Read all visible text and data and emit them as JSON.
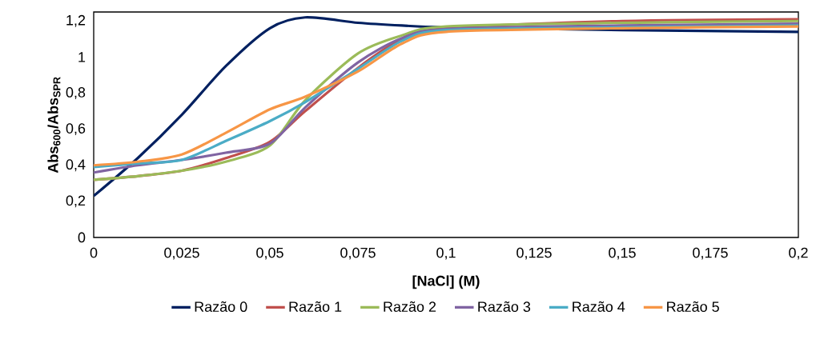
{
  "chart_data": {
    "type": "line",
    "xlabel": "[NaCl] (M)",
    "ylabel": "**Abs$_{600}$/Abs$_{SPR}$**",
    "x": [
      0,
      0.0125,
      0.025,
      0.0375,
      0.05,
      0.06,
      0.075,
      0.0875,
      0.1,
      0.15,
      0.2
    ],
    "xlim": [
      0,
      0.2
    ],
    "ylim": [
      0,
      1.25
    ],
    "xticks": [
      0,
      {
        "value": 0.025,
        "label": "0,025"
      },
      {
        "value": 0.05,
        "label": "0,05"
      },
      {
        "value": 0.075,
        "label": "0,075"
      },
      {
        "value": 0.1,
        "label": "0,1"
      },
      {
        "value": 0.125,
        "label": "0,125"
      },
      {
        "value": 0.15,
        "label": "0,15"
      },
      {
        "value": 0.175,
        "label": "0,175"
      },
      {
        "value": 0.2,
        "label": "0,2"
      }
    ],
    "yticks": [
      0,
      {
        "value": 0.2,
        "label": "0,2"
      },
      {
        "value": 0.4,
        "label": "0,4"
      },
      {
        "value": 0.6,
        "label": "0,6"
      },
      {
        "value": 0.8,
        "label": "0,8"
      },
      1,
      {
        "value": 1.2,
        "label": "1,2"
      }
    ],
    "grid": false,
    "legend": "bottom",
    "marker": "none",
    "line_style": "solid",
    "series": [
      {
        "name": "Razão 0",
        "color": "#002060",
        "values": [
          0.23,
          0.44,
          0.68,
          0.95,
          1.16,
          1.22,
          1.19,
          1.175,
          1.165,
          1.15,
          1.14
        ]
      },
      {
        "name": "Razão 1",
        "color": "#c0504d",
        "values": [
          0.32,
          0.34,
          0.37,
          0.44,
          0.53,
          0.7,
          0.94,
          1.1,
          1.16,
          1.2,
          1.21
        ]
      },
      {
        "name": "Razão 2",
        "color": "#9bbb59",
        "values": [
          0.32,
          0.34,
          0.37,
          0.42,
          0.51,
          0.76,
          1.02,
          1.12,
          1.17,
          1.19,
          1.2
        ]
      },
      {
        "name": "Razão 3",
        "color": "#8064a2",
        "values": [
          0.36,
          0.4,
          0.43,
          0.47,
          0.52,
          0.72,
          0.97,
          1.105,
          1.155,
          1.175,
          1.185
        ]
      },
      {
        "name": "Razão 4",
        "color": "#4bacc6",
        "values": [
          0.39,
          0.41,
          0.43,
          0.535,
          0.645,
          0.75,
          0.935,
          1.09,
          1.15,
          1.165,
          1.175
        ]
      },
      {
        "name": "Razão 5",
        "color": "#f79646",
        "values": [
          0.4,
          0.42,
          0.46,
          0.58,
          0.71,
          0.78,
          0.92,
          1.075,
          1.14,
          1.16,
          1.17
        ]
      }
    ]
  }
}
